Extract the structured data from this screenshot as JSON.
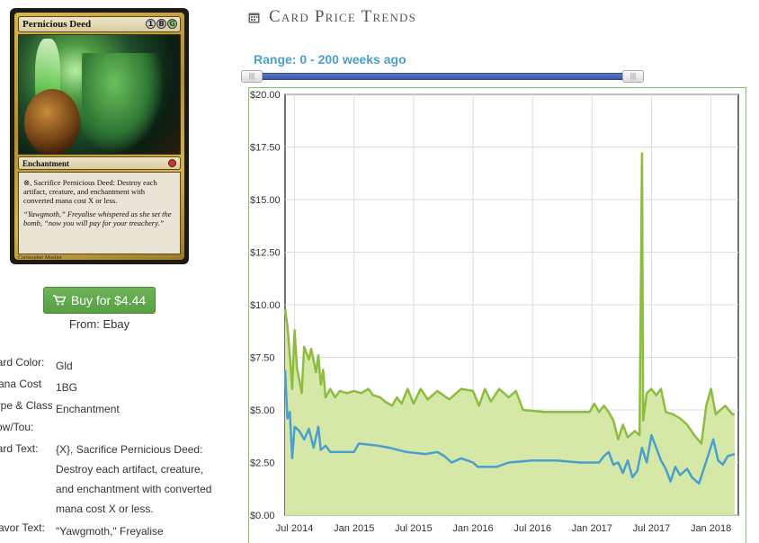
{
  "card": {
    "name": "Pernicious Deed",
    "mana_symbols": [
      "1",
      "B",
      "G"
    ],
    "type_line": "Enchantment",
    "rules_text": "⊗, Sacrifice Pernicious Deed: Destroy each artifact, creature, and enchantment with converted mana cost X or less.",
    "flavor_text": "“Yawgmoth,” Freyalise whispered as she set the bomb, “now you will pay for your treachery.”",
    "artist": "Christopher Moeller",
    "colors": {
      "gold": "#d6b34d",
      "green": "#4e9a43"
    }
  },
  "buy": {
    "label": "Buy for $4.44",
    "icon": "shopping-cart-icon",
    "source": "From: Ebay",
    "color": "#5ca64a"
  },
  "attributes": [
    {
      "label": "Card Color:",
      "value": "Gld"
    },
    {
      "label": "Mana Cost",
      "value": "1BG"
    },
    {
      "label": "Type & Class:",
      "value": "Enchantment"
    },
    {
      "label": "Pow/Tou:",
      "value": ""
    },
    {
      "label": "Card Text:",
      "value": "{X}, Sacrifice Pernicious Deed: Destroy each artifact, creature, and enchantment with converted mana cost X or less."
    },
    {
      "label": "Flavor Text:",
      "value": "\"Yawgmoth,\" Freyalise"
    }
  ],
  "trends": {
    "title": "Card Price Trends",
    "icon": "calendar-icon",
    "range_label": "Range: 0 - 200 weeks ago",
    "slider": {
      "min_weeks": 0,
      "max_weeks": 200,
      "handle_glyph": "|||",
      "color": "#3a56a6"
    }
  },
  "chart_data": {
    "type": "area",
    "xlabel": "",
    "ylabel": "",
    "xlim": [
      2014.42,
      2018.23
    ],
    "ylim": [
      0,
      20
    ],
    "grid": true,
    "colors": {
      "paper": "#8cbd3f",
      "paper_fill": "#d5e8a8",
      "foil": "#4a9fd0"
    },
    "x_ticks": [
      {
        "x": 2014.5,
        "label": "Jul 2014"
      },
      {
        "x": 2015.0,
        "label": "Jan 2015"
      },
      {
        "x": 2015.5,
        "label": "Jul 2015"
      },
      {
        "x": 2016.0,
        "label": "Jan 2016"
      },
      {
        "x": 2016.5,
        "label": "Jul 2016"
      },
      {
        "x": 2017.0,
        "label": "Jan 2017"
      },
      {
        "x": 2017.5,
        "label": "Jul 2017"
      },
      {
        "x": 2018.0,
        "label": "Jan 2018"
      }
    ],
    "y_ticks": [
      {
        "y": 0,
        "label": "$0.00"
      },
      {
        "y": 2.5,
        "label": "$2.50"
      },
      {
        "y": 5,
        "label": "$5.00"
      },
      {
        "y": 7.5,
        "label": "$7.50"
      },
      {
        "y": 10,
        "label": "$10.00"
      },
      {
        "y": 12.5,
        "label": "$12.50"
      },
      {
        "y": 15,
        "label": "$15.00"
      },
      {
        "y": 17.5,
        "label": "$17.50"
      },
      {
        "y": 20,
        "label": "$20.00"
      }
    ],
    "series": [
      {
        "key": "paper",
        "points": [
          [
            2014.42,
            9.8
          ],
          [
            2014.44,
            9.0
          ],
          [
            2014.46,
            7.6
          ],
          [
            2014.48,
            6.0
          ],
          [
            2014.5,
            8.8
          ],
          [
            2014.52,
            7.0
          ],
          [
            2014.54,
            6.4
          ],
          [
            2014.56,
            5.8
          ],
          [
            2014.58,
            8.0
          ],
          [
            2014.62,
            7.4
          ],
          [
            2014.64,
            7.9
          ],
          [
            2014.68,
            6.8
          ],
          [
            2014.7,
            7.6
          ],
          [
            2014.72,
            6.2
          ],
          [
            2014.74,
            6.9
          ],
          [
            2014.76,
            5.6
          ],
          [
            2014.8,
            6.0
          ],
          [
            2014.84,
            5.6
          ],
          [
            2014.88,
            5.9
          ],
          [
            2014.94,
            5.8
          ],
          [
            2015.0,
            5.9
          ],
          [
            2015.06,
            5.8
          ],
          [
            2015.12,
            6.0
          ],
          [
            2015.16,
            5.7
          ],
          [
            2015.22,
            5.6
          ],
          [
            2015.26,
            5.4
          ],
          [
            2015.32,
            5.2
          ],
          [
            2015.36,
            5.6
          ],
          [
            2015.4,
            5.3
          ],
          [
            2015.45,
            6.0
          ],
          [
            2015.5,
            5.3
          ],
          [
            2015.56,
            6.0
          ],
          [
            2015.62,
            5.5
          ],
          [
            2015.7,
            5.9
          ],
          [
            2015.8,
            5.5
          ],
          [
            2015.9,
            6.0
          ],
          [
            2016.0,
            5.9
          ],
          [
            2016.05,
            5.2
          ],
          [
            2016.1,
            6.0
          ],
          [
            2016.15,
            5.4
          ],
          [
            2016.22,
            6.0
          ],
          [
            2016.3,
            5.6
          ],
          [
            2016.36,
            5.9
          ],
          [
            2016.42,
            5.0
          ],
          [
            2016.6,
            4.9
          ],
          [
            2016.8,
            4.9
          ],
          [
            2016.98,
            4.9
          ],
          [
            2017.02,
            5.3
          ],
          [
            2017.06,
            4.9
          ],
          [
            2017.1,
            5.2
          ],
          [
            2017.14,
            4.9
          ],
          [
            2017.18,
            4.5
          ],
          [
            2017.22,
            3.6
          ],
          [
            2017.26,
            4.3
          ],
          [
            2017.3,
            3.7
          ],
          [
            2017.36,
            4.0
          ],
          [
            2017.4,
            3.8
          ],
          [
            2017.42,
            17.2
          ],
          [
            2017.43,
            4.5
          ],
          [
            2017.46,
            5.8
          ],
          [
            2017.5,
            6.0
          ],
          [
            2017.54,
            5.7
          ],
          [
            2017.58,
            6.0
          ],
          [
            2017.62,
            4.9
          ],
          [
            2017.68,
            4.8
          ],
          [
            2017.74,
            4.6
          ],
          [
            2017.8,
            4.3
          ],
          [
            2017.86,
            3.8
          ],
          [
            2017.92,
            3.4
          ],
          [
            2017.96,
            5.2
          ],
          [
            2018.0,
            6.0
          ],
          [
            2018.04,
            4.8
          ],
          [
            2018.08,
            5.0
          ],
          [
            2018.12,
            5.2
          ],
          [
            2018.18,
            4.8
          ],
          [
            2018.2,
            4.8
          ]
        ]
      },
      {
        "key": "foil",
        "points": [
          [
            2014.42,
            6.9
          ],
          [
            2014.44,
            4.6
          ],
          [
            2014.46,
            4.9
          ],
          [
            2014.48,
            2.7
          ],
          [
            2014.5,
            4.2
          ],
          [
            2014.54,
            4.0
          ],
          [
            2014.58,
            3.6
          ],
          [
            2014.62,
            4.1
          ],
          [
            2014.66,
            3.2
          ],
          [
            2014.7,
            4.2
          ],
          [
            2014.72,
            3.1
          ],
          [
            2014.76,
            3.3
          ],
          [
            2014.8,
            3.0
          ],
          [
            2014.9,
            3.0
          ],
          [
            2015.0,
            3.0
          ],
          [
            2015.04,
            3.4
          ],
          [
            2015.2,
            3.3
          ],
          [
            2015.3,
            3.2
          ],
          [
            2015.44,
            3.0
          ],
          [
            2015.6,
            2.9
          ],
          [
            2015.7,
            3.0
          ],
          [
            2015.76,
            2.8
          ],
          [
            2015.82,
            2.5
          ],
          [
            2015.9,
            2.7
          ],
          [
            2016.0,
            2.5
          ],
          [
            2016.04,
            2.3
          ],
          [
            2016.2,
            2.3
          ],
          [
            2016.3,
            2.5
          ],
          [
            2016.5,
            2.6
          ],
          [
            2016.7,
            2.6
          ],
          [
            2016.9,
            2.5
          ],
          [
            2017.0,
            2.5
          ],
          [
            2017.06,
            2.5
          ],
          [
            2017.1,
            2.8
          ],
          [
            2017.14,
            3.0
          ],
          [
            2017.18,
            2.4
          ],
          [
            2017.22,
            2.5
          ],
          [
            2017.26,
            2.0
          ],
          [
            2017.3,
            2.6
          ],
          [
            2017.34,
            1.8
          ],
          [
            2017.38,
            2.1
          ],
          [
            2017.42,
            3.2
          ],
          [
            2017.46,
            2.5
          ],
          [
            2017.5,
            3.8
          ],
          [
            2017.54,
            3.2
          ],
          [
            2017.58,
            2.6
          ],
          [
            2017.62,
            2.2
          ],
          [
            2017.66,
            1.6
          ],
          [
            2017.7,
            2.3
          ],
          [
            2017.74,
            1.9
          ],
          [
            2017.8,
            2.2
          ],
          [
            2017.84,
            1.8
          ],
          [
            2017.9,
            1.5
          ],
          [
            2017.94,
            2.2
          ],
          [
            2017.98,
            2.9
          ],
          [
            2018.02,
            3.6
          ],
          [
            2018.06,
            2.6
          ],
          [
            2018.1,
            2.4
          ],
          [
            2018.14,
            2.8
          ],
          [
            2018.2,
            2.9
          ]
        ]
      }
    ]
  }
}
